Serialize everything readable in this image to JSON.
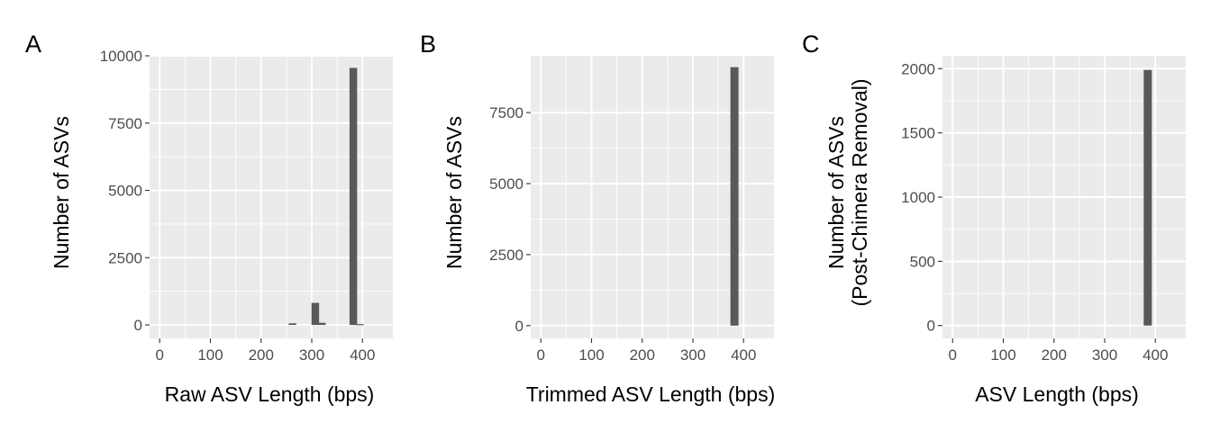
{
  "chart_data": [
    {
      "panel_label": "A",
      "type": "bar",
      "xlabel": "Raw ASV Length (bps)",
      "ylabel": [
        "Number of ASVs"
      ],
      "xlim": [
        -20,
        460
      ],
      "ylim": [
        -500,
        10000
      ],
      "xticks": [
        0,
        100,
        200,
        300,
        400
      ],
      "yticks": [
        0,
        2500,
        5000,
        7500,
        10000
      ],
      "grid": true,
      "bin_width": 15,
      "bars": [
        {
          "x": 262,
          "y": 60
        },
        {
          "x": 307,
          "y": 820
        },
        {
          "x": 320,
          "y": 80
        },
        {
          "x": 382,
          "y": 9550
        },
        {
          "x": 395,
          "y": 30
        }
      ]
    },
    {
      "panel_label": "B",
      "type": "bar",
      "xlabel": "Trimmed ASV Length (bps)",
      "ylabel": [
        "Number of ASVs"
      ],
      "xlim": [
        -20,
        460
      ],
      "ylim": [
        -450,
        9500
      ],
      "xticks": [
        0,
        100,
        200,
        300,
        400
      ],
      "yticks": [
        0,
        2500,
        5000,
        7500
      ],
      "grid": true,
      "bin_width": 16,
      "bars": [
        {
          "x": 382,
          "y": 9100
        }
      ]
    },
    {
      "panel_label": "C",
      "type": "bar",
      "xlabel": "ASV Length (bps)",
      "ylabel": [
        "Number of ASVs",
        "(Post-Chimera Removal)"
      ],
      "xlim": [
        -20,
        460
      ],
      "ylim": [
        -100,
        2100
      ],
      "xticks": [
        0,
        100,
        200,
        300,
        400
      ],
      "yticks": [
        0,
        500,
        1000,
        1500,
        2000
      ],
      "grid": true,
      "bin_width": 16,
      "bars": [
        {
          "x": 385,
          "y": 1990
        }
      ]
    }
  ]
}
